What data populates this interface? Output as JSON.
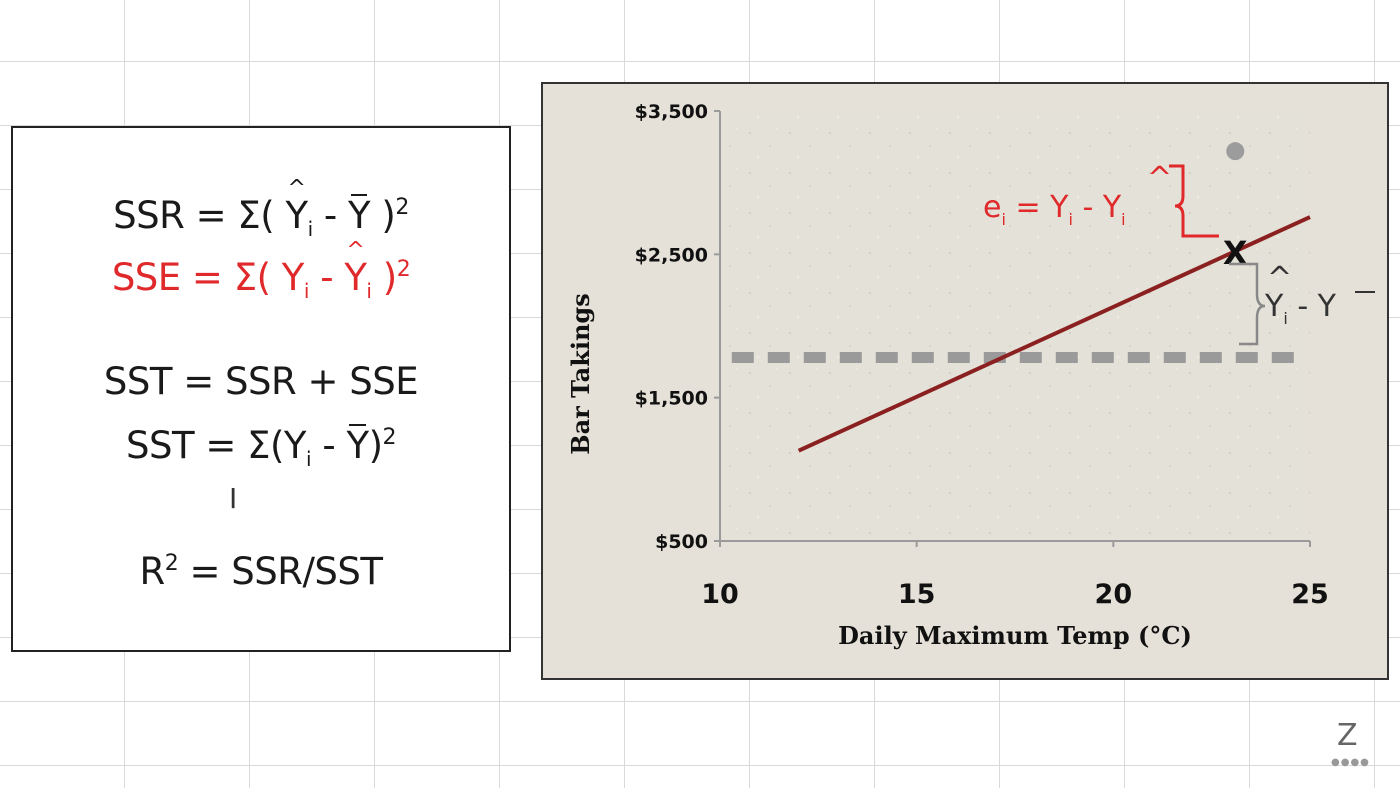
{
  "formulas": {
    "ssr": {
      "lhs": "SSR = Σ( ",
      "yhat": "Y",
      "sub": "i",
      "mid": " - ",
      "ybar": "Y",
      "end": " )",
      "sup": "2"
    },
    "sse": {
      "lhs": "SSE = Σ( ",
      "y": "Y",
      "sub1": "i",
      "mid": " - ",
      "yhat": "Y",
      "sub2": "i",
      "end": " )",
      "sup": "2"
    },
    "sst1": "SST = SSR + SSE",
    "sst2": {
      "lhs": "SST = Σ(",
      "y": "Y",
      "sub": "i",
      "mid": " - ",
      "ybar": "Y",
      "end": ")",
      "sup": "2"
    },
    "r2": {
      "r": "R",
      "sup": "2",
      "rest": " = SSR/SST"
    }
  },
  "cursor": "I",
  "chart_data": {
    "type": "line",
    "xlabel": "Daily Maximum Temp (°C)",
    "ylabel": "Bar Takings",
    "xlim": [
      10,
      25
    ],
    "ylim": [
      500,
      3500
    ],
    "x_ticks": [
      10,
      15,
      20,
      25
    ],
    "y_ticks": [
      500,
      1500,
      2500,
      3500
    ],
    "y_tick_labels": [
      "$500",
      "$1,500",
      "$2,500",
      "$3,500"
    ],
    "x_tick_labels": [
      "10",
      "15",
      "20",
      "25"
    ],
    "series": [
      {
        "kind": "regression-line",
        "x": [
          12,
          25
        ],
        "y": [
          1130,
          2760
        ],
        "color": "#8b2020"
      },
      {
        "kind": "mean-line",
        "x": [
          10.3,
          24.9
        ],
        "y": [
          1780,
          1780
        ],
        "color": "#9a9a9a",
        "style": "dashed"
      },
      {
        "kind": "observed-point",
        "x": [
          23.1
        ],
        "y": [
          3220
        ],
        "color": "#9c9c9c"
      },
      {
        "kind": "predicted-marker",
        "x": [
          23.1
        ],
        "y": [
          2510
        ],
        "color": "#111111"
      }
    ],
    "marker_label": "X",
    "annotations": {
      "residual": {
        "lhs": "e",
        "sub": "i",
        "eq": " = Y",
        "sub2": "i",
        "mid": " - Y",
        "sub3": "i"
      },
      "explained": {
        "y": "Y",
        "sub": "i",
        "mid": " - Y"
      }
    },
    "grid": false
  },
  "logo": {
    "text": "Z",
    "dots": "●●●●"
  }
}
